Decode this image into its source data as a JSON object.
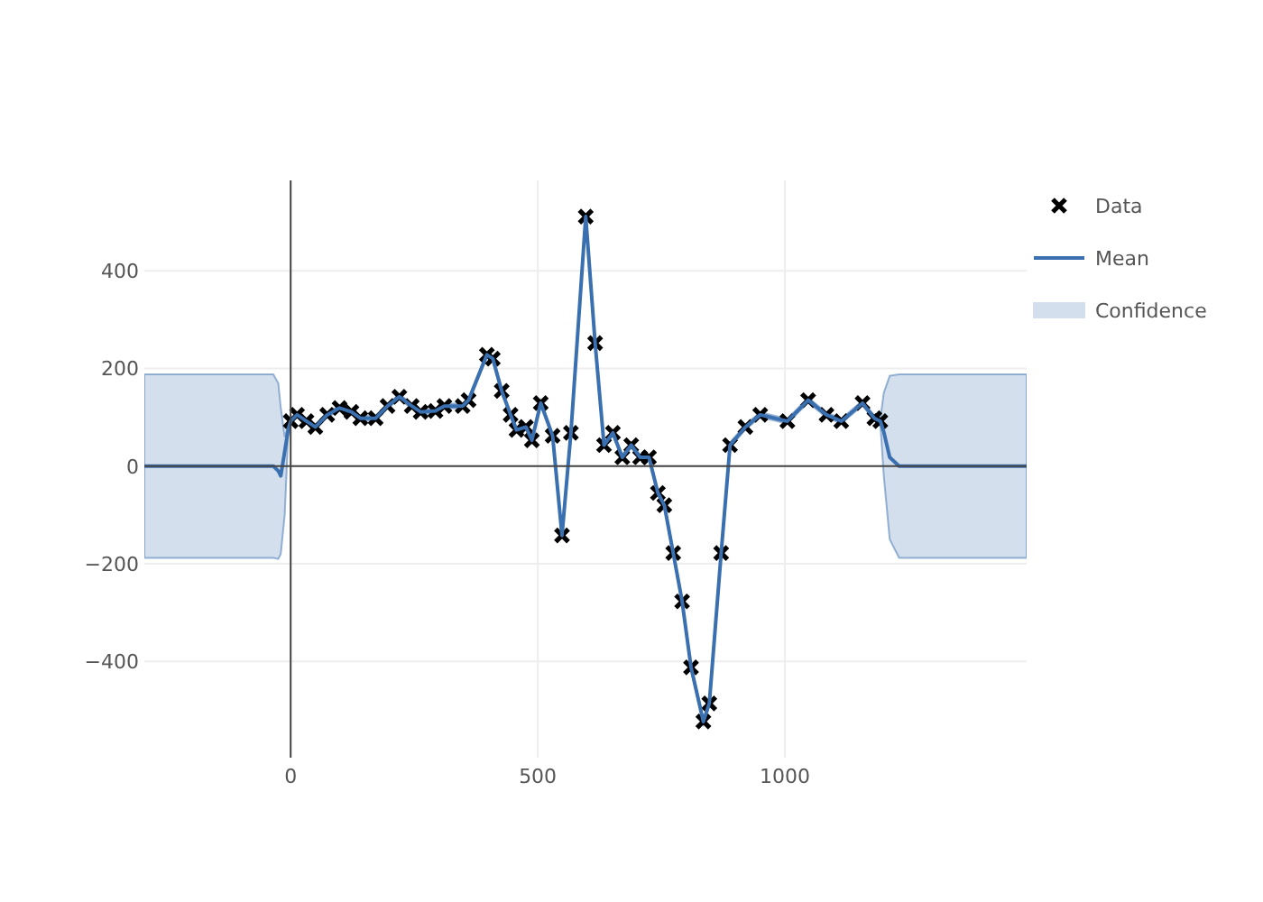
{
  "chart_data": {
    "type": "line",
    "xlim": [
      -296,
      1489
    ],
    "xticks": [
      0,
      500,
      1000
    ],
    "ylim": [
      -597,
      585
    ],
    "yticks": [
      {
        "value": -400,
        "label": "−400"
      },
      {
        "value": -200,
        "label": "−200"
      },
      0,
      200,
      400
    ],
    "grid": true,
    "legend": "top right",
    "annotations": [
      "Confidence"
    ],
    "series": [
      {
        "name": "Data",
        "type": "scatter",
        "marker": "cross",
        "color": "#000000",
        "x": [
          0,
          13,
          32,
          50,
          74,
          99,
          123,
          141,
          172,
          196,
          220,
          245,
          263,
          293,
          311,
          348,
          360,
          397,
          409,
          427,
          445,
          457,
          476,
          488,
          506,
          530,
          549,
          567,
          597,
          616,
          634,
          652,
          671,
          689,
          707,
          725,
          743,
          756,
          774,
          792,
          810,
          835,
          847,
          871,
          889,
          920,
          950,
          1005,
          1047,
          1084,
          1114,
          1157,
          1181,
          1193
        ],
        "values": [
          92,
          105,
          92,
          80,
          105,
          119,
          111,
          98,
          98,
          123,
          142,
          123,
          111,
          113,
          123,
          123,
          135,
          228,
          220,
          154,
          105,
          74,
          80,
          53,
          129,
          62,
          -142,
          68,
          511,
          252,
          43,
          68,
          18,
          43,
          18,
          18,
          -55,
          -80,
          -178,
          -277,
          -412,
          -523,
          -486,
          -178,
          43,
          80,
          105,
          92,
          135,
          105,
          92,
          129,
          98,
          92
        ]
      },
      {
        "name": "Mean",
        "marker": "none",
        "color": "#3a6fb0",
        "x": [
          -296,
          -35,
          -25,
          -20,
          -12,
          -5,
          0,
          13,
          32,
          50,
          74,
          99,
          123,
          141,
          172,
          196,
          220,
          245,
          263,
          293,
          311,
          348,
          360,
          397,
          409,
          427,
          445,
          457,
          476,
          488,
          506,
          530,
          549,
          567,
          597,
          616,
          634,
          652,
          671,
          689,
          707,
          725,
          743,
          756,
          774,
          792,
          810,
          835,
          847,
          871,
          889,
          920,
          950,
          1005,
          1047,
          1084,
          1114,
          1157,
          1181,
          1193,
          1200,
          1212,
          1231,
          1489
        ],
        "values": [
          0,
          0,
          -10,
          -20,
          30,
          75,
          92,
          105,
          92,
          80,
          105,
          119,
          111,
          98,
          98,
          123,
          142,
          123,
          111,
          113,
          123,
          123,
          135,
          228,
          220,
          154,
          105,
          74,
          80,
          53,
          129,
          62,
          -142,
          68,
          511,
          252,
          43,
          68,
          18,
          43,
          18,
          18,
          -55,
          -80,
          -178,
          -277,
          -412,
          -523,
          -486,
          -178,
          43,
          80,
          105,
          92,
          135,
          105,
          92,
          129,
          98,
          92,
          70,
          18,
          0,
          0
        ],
        "upper": [
          188,
          188,
          170,
          120,
          60,
          85,
          97,
          110,
          97,
          85,
          110,
          124,
          116,
          103,
          103,
          128,
          147,
          128,
          116,
          118,
          128,
          128,
          140,
          233,
          225,
          159,
          110,
          79,
          85,
          58,
          134,
          67,
          -137,
          73,
          516,
          257,
          48,
          73,
          23,
          48,
          23,
          23,
          -50,
          -75,
          -173,
          -272,
          -407,
          -518,
          -481,
          -173,
          48,
          85,
          110,
          97,
          140,
          110,
          97,
          134,
          103,
          97,
          150,
          185,
          188,
          188
        ],
        "lower": [
          -188,
          -188,
          -190,
          -180,
          -100,
          65,
          87,
          100,
          87,
          75,
          100,
          114,
          106,
          93,
          93,
          118,
          137,
          118,
          106,
          108,
          118,
          118,
          130,
          223,
          215,
          149,
          100,
          69,
          75,
          48,
          124,
          57,
          -147,
          63,
          506,
          247,
          38,
          63,
          13,
          38,
          13,
          13,
          -60,
          -85,
          -183,
          -282,
          -417,
          -528,
          -491,
          -183,
          38,
          75,
          100,
          87,
          130,
          100,
          87,
          124,
          93,
          87,
          -20,
          -150,
          -188,
          -188
        ]
      }
    ]
  }
}
